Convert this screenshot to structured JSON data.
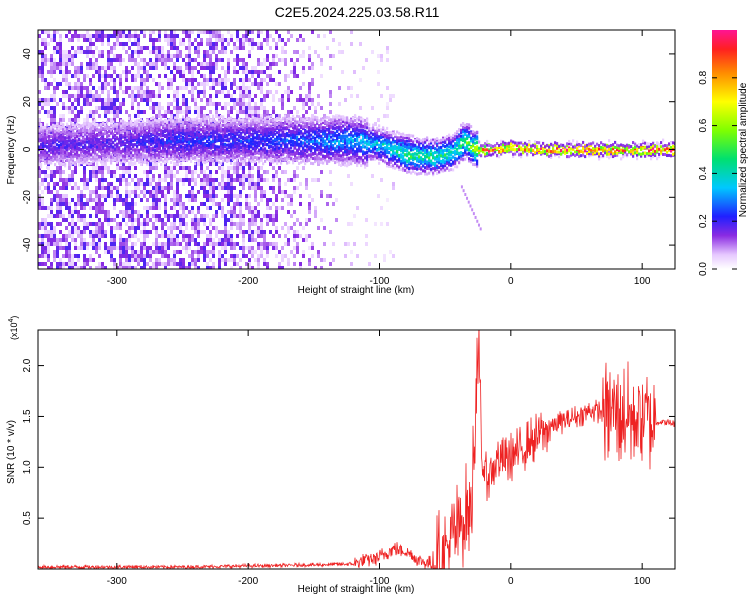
{
  "title": "C2E5.2024.225.03.58.R11",
  "colors": {
    "snr_line": "#ee2222",
    "axis": "#000000",
    "background": "#ffffff"
  },
  "chart_data": [
    {
      "type": "heatmap",
      "title": "",
      "xlabel": "Height of straight line (km)",
      "ylabel": "Frequency (Hz)",
      "xlim": [
        -360,
        125
      ],
      "ylim": [
        -50,
        50
      ],
      "x_ticks": [
        "-300",
        "-200",
        "-100",
        "0",
        "100"
      ],
      "y_ticks": [
        "-40",
        "-20",
        "0",
        "20",
        "40"
      ],
      "colorbar": {
        "label": "Normalized spectral amplitude",
        "range": [
          0.0,
          1.0
        ],
        "ticks": [
          "0.0",
          "0.2",
          "0.4",
          "0.6",
          "0.8"
        ],
        "colormap": "rainbow (white-violet-blue-cyan-green-yellow-red)"
      },
      "ridge": {
        "x": [
          -360,
          -300,
          -250,
          -200,
          -150,
          -120,
          -100,
          -80,
          -60,
          -45,
          -35,
          -30,
          -20,
          -10,
          0,
          20,
          50,
          100,
          125
        ],
        "freq_hz": [
          2,
          3,
          4,
          4,
          4,
          4,
          2,
          -2,
          -3,
          -1,
          4,
          1,
          0,
          0,
          1,
          0,
          0,
          0,
          0
        ],
        "amplitude": [
          0.2,
          0.2,
          0.25,
          0.25,
          0.3,
          0.35,
          0.4,
          0.5,
          0.5,
          0.45,
          0.55,
          0.6,
          0.9,
          0.95,
          0.9,
          0.95,
          0.95,
          0.95,
          0.95
        ]
      },
      "noise_extent_x": [
        -360,
        -130
      ]
    },
    {
      "type": "line",
      "title": "",
      "xlabel": "Height of straight line (km)",
      "ylabel": "SNR (10 * v/v)",
      "y_multiplier": "(x10",
      "y_multiplier_exp": "4",
      "y_multiplier_close": ")",
      "xlim": [
        -360,
        125
      ],
      "ylim": [
        0,
        2.35
      ],
      "x_ticks": [
        "-300",
        "-200",
        "-100",
        "0",
        "100"
      ],
      "y_ticks": [
        "0.5",
        "1.0",
        "1.5",
        "2.0"
      ],
      "series": [
        {
          "x": [
            -360,
            -300,
            -250,
            -200,
            -150,
            -120,
            -100,
            -90,
            -80,
            -70,
            -60,
            -50,
            -45,
            -40,
            -35,
            -30,
            -25,
            -22,
            -20,
            -15,
            -10,
            -5,
            0,
            10,
            20,
            30,
            40,
            50,
            60,
            70,
            80,
            90,
            100,
            110,
            125
          ],
          "y": [
            0.02,
            0.02,
            0.02,
            0.03,
            0.04,
            0.05,
            0.12,
            0.2,
            0.18,
            0.08,
            0.05,
            0.15,
            0.3,
            0.4,
            0.55,
            0.6,
            2.3,
            1.0,
            0.9,
            0.95,
            1.1,
            1.05,
            1.1,
            1.2,
            1.3,
            1.4,
            1.45,
            1.5,
            1.55,
            1.55,
            1.55,
            1.5,
            1.5,
            1.45,
            1.43
          ]
        }
      ]
    }
  ]
}
